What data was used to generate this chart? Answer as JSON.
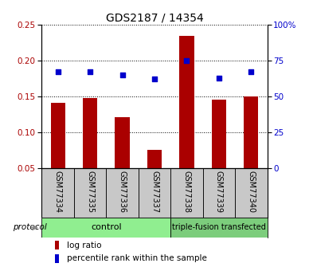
{
  "title": "GDS2187 / 14354",
  "samples": [
    "GSM77334",
    "GSM77335",
    "GSM77336",
    "GSM77337",
    "GSM77338",
    "GSM77339",
    "GSM77340"
  ],
  "log_ratio": [
    0.141,
    0.148,
    0.121,
    0.075,
    0.235,
    0.146,
    0.15
  ],
  "percentile_rank": [
    67,
    67,
    65,
    62,
    75,
    63,
    67
  ],
  "ylim_left": [
    0.05,
    0.25
  ],
  "ylim_right": [
    0,
    100
  ],
  "yticks_left": [
    0.05,
    0.1,
    0.15,
    0.2,
    0.25
  ],
  "yticks_right": [
    0,
    25,
    50,
    75,
    100
  ],
  "bar_color": "#AA0000",
  "dot_color": "#0000CC",
  "bar_width": 0.45,
  "grid_color": "black",
  "bg_xlabel": "#C8C8C8",
  "bg_control": "#90EE90",
  "bg_triple": "#7CCD7C",
  "n_control": 4,
  "n_triple": 3,
  "control_label": "control",
  "triple_label": "triple-fusion transfected",
  "protocol_label": "protocol",
  "legend_bar_label": "log ratio",
  "legend_dot_label": "percentile rank within the sample"
}
